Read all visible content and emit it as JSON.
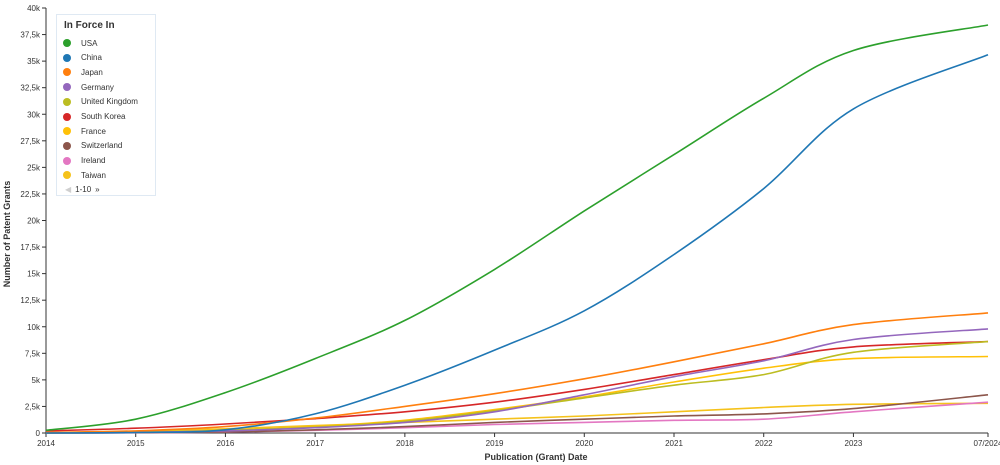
{
  "chart_data": {
    "type": "line",
    "xlabel": "Publication (Grant) Date",
    "ylabel": "Number of Patent Grants",
    "x_ticks": [
      "2014",
      "2015",
      "2016",
      "2017",
      "2018",
      "2019",
      "2020",
      "2021",
      "2022",
      "2023",
      "07/2024"
    ],
    "x_range": [
      2014.0,
      2024.5
    ],
    "ylim": [
      0,
      40000
    ],
    "y_ticks": [
      0,
      2500,
      5000,
      7500,
      10000,
      12500,
      15000,
      17500,
      20000,
      22500,
      25000,
      27500,
      30000,
      32500,
      35000,
      37500,
      40000
    ],
    "y_tick_labels": [
      "0",
      "2,5k",
      "5k",
      "7,5k",
      "10k",
      "12,5k",
      "15k",
      "17,5k",
      "20k",
      "22,5k",
      "25k",
      "27,5k",
      "30k",
      "32,5k",
      "35k",
      "37,5k",
      "40k"
    ],
    "x": [
      2014,
      2015,
      2016,
      2017,
      2018,
      2019,
      2020,
      2021,
      2022,
      2023,
      2024.5
    ],
    "legend": {
      "title": "In Force In",
      "placement": "top-left",
      "pager": "1-10"
    },
    "series": [
      {
        "name": "USA",
        "color": "#2ca02c",
        "values": [
          250,
          1300,
          3800,
          7000,
          10600,
          15400,
          20900,
          26200,
          31500,
          36000,
          38400
        ]
      },
      {
        "name": "China",
        "color": "#1f77b4",
        "values": [
          0,
          50,
          300,
          1800,
          4500,
          7800,
          11500,
          16800,
          23000,
          30500,
          35600
        ]
      },
      {
        "name": "Japan",
        "color": "#ff7f0e",
        "values": [
          50,
          200,
          600,
          1400,
          2500,
          3700,
          5100,
          6700,
          8400,
          10200,
          11300
        ]
      },
      {
        "name": "Germany",
        "color": "#9467bd",
        "values": [
          0,
          50,
          200,
          500,
          1000,
          2000,
          3600,
          5300,
          6800,
          8800,
          9800
        ]
      },
      {
        "name": "United Kingdom",
        "color": "#bcbd22",
        "values": [
          0,
          80,
          250,
          550,
          1100,
          2100,
          3300,
          4500,
          5500,
          7600,
          8600
        ]
      },
      {
        "name": "South Korea",
        "color": "#d62728",
        "values": [
          200,
          450,
          850,
          1350,
          2000,
          2900,
          4100,
          5500,
          6900,
          8100,
          8600
        ]
      },
      {
        "name": "France",
        "color": "#ffc107",
        "values": [
          0,
          60,
          250,
          600,
          1200,
          2200,
          3400,
          4800,
          6100,
          7000,
          7200
        ]
      },
      {
        "name": "Switzerland",
        "color": "#8c564b",
        "values": [
          0,
          30,
          100,
          300,
          600,
          1000,
          1300,
          1600,
          1800,
          2300,
          3600
        ]
      },
      {
        "name": "Ireland",
        "color": "#e377c2",
        "values": [
          0,
          20,
          80,
          250,
          500,
          800,
          1000,
          1200,
          1300,
          2000,
          2900
        ]
      },
      {
        "name": "Taiwan",
        "color": "#f5c21b",
        "values": [
          50,
          150,
          400,
          700,
          1000,
          1300,
          1600,
          2000,
          2400,
          2700,
          2800
        ]
      }
    ]
  }
}
